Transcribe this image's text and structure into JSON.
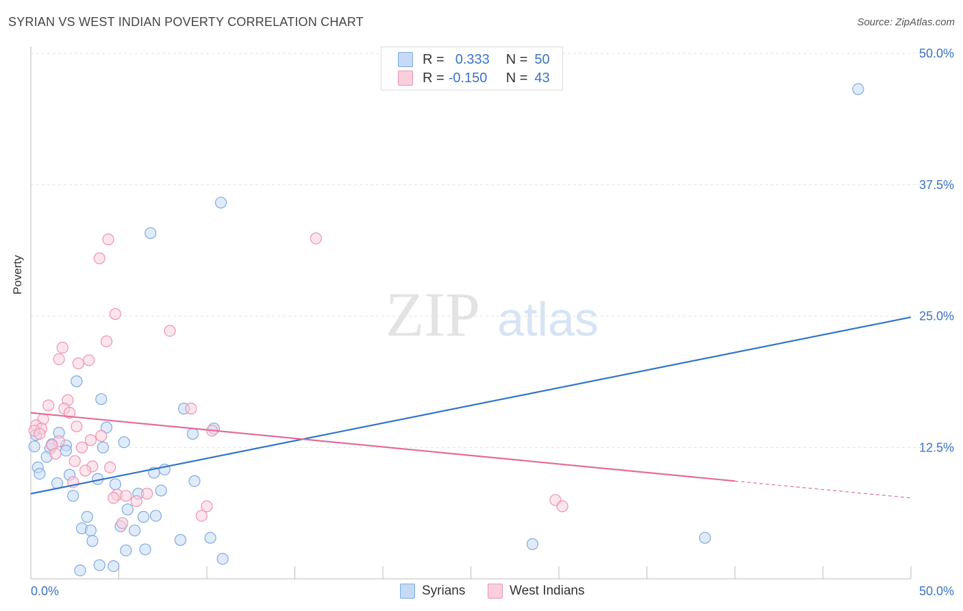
{
  "header": {
    "title": "SYRIAN VS WEST INDIAN POVERTY CORRELATION CHART",
    "source": "Source: ZipAtlas.com"
  },
  "legend": {
    "r_label": "R =",
    "n_label": "N =",
    "series": [
      {
        "r": "0.333",
        "n": "50"
      },
      {
        "r": "-0.150",
        "n": "43"
      }
    ]
  },
  "bottom_legend": [
    "Syrians",
    "West Indians"
  ],
  "watermark": {
    "zip": "ZIP",
    "atlas": "atlas"
  },
  "colors": {
    "syrians_fill": "#c6daf5",
    "syrians_stroke": "#7ea9e0",
    "syrians_line": "#2f74c9",
    "westindians_fill": "#f9cfdc",
    "westindians_stroke": "#ec93b0",
    "westindians_line": "#e36b98",
    "axis_text": "#3b73c4"
  },
  "chart_data": {
    "type": "scatter",
    "title": "SYRIAN VS WEST INDIAN POVERTY CORRELATION CHART",
    "xlabel": "",
    "ylabel": "Poverty",
    "xlim": [
      0,
      50
    ],
    "ylim": [
      0,
      50
    ],
    "x_tick_labels": [
      "0.0%",
      "50.0%"
    ],
    "y_tick_labels": [
      "12.5%",
      "25.0%",
      "37.5%",
      "50.0%"
    ],
    "y_ticks": [
      12.5,
      25,
      37.5,
      50
    ],
    "grid": true,
    "series": [
      {
        "name": "Syrians",
        "r": 0.333,
        "n": 50,
        "trend": {
          "x0": 0,
          "y0": 8.1,
          "x1": 50,
          "y1": 24.9
        },
        "points": [
          [
            47.0,
            46.6
          ],
          [
            10.8,
            35.8
          ],
          [
            6.8,
            32.9
          ],
          [
            2.6,
            18.8
          ],
          [
            4.0,
            17.1
          ],
          [
            8.7,
            16.2
          ],
          [
            9.2,
            13.8
          ],
          [
            10.4,
            14.3
          ],
          [
            4.3,
            14.4
          ],
          [
            5.3,
            13.0
          ],
          [
            1.6,
            13.9
          ],
          [
            2.0,
            12.7
          ],
          [
            2.0,
            12.2
          ],
          [
            1.1,
            12.4
          ],
          [
            0.9,
            11.6
          ],
          [
            0.4,
            10.6
          ],
          [
            0.5,
            10.0
          ],
          [
            0.2,
            12.6
          ],
          [
            2.2,
            9.9
          ],
          [
            1.5,
            9.1
          ],
          [
            3.8,
            9.5
          ],
          [
            4.8,
            9.0
          ],
          [
            7.0,
            10.1
          ],
          [
            7.6,
            10.4
          ],
          [
            9.3,
            9.3
          ],
          [
            2.4,
            7.9
          ],
          [
            6.1,
            8.1
          ],
          [
            7.4,
            8.4
          ],
          [
            5.5,
            6.6
          ],
          [
            3.2,
            5.9
          ],
          [
            6.4,
            5.9
          ],
          [
            7.1,
            6.0
          ],
          [
            2.9,
            4.8
          ],
          [
            3.4,
            4.6
          ],
          [
            5.1,
            5.0
          ],
          [
            5.9,
            4.6
          ],
          [
            3.5,
            3.6
          ],
          [
            8.5,
            3.7
          ],
          [
            10.2,
            3.9
          ],
          [
            28.5,
            3.3
          ],
          [
            38.3,
            3.9
          ],
          [
            5.4,
            2.7
          ],
          [
            6.5,
            2.8
          ],
          [
            10.9,
            1.9
          ],
          [
            3.9,
            1.3
          ],
          [
            4.7,
            1.2
          ],
          [
            2.8,
            0.8
          ],
          [
            0.3,
            13.7
          ],
          [
            4.1,
            12.5
          ],
          [
            1.2,
            12.8
          ]
        ]
      },
      {
        "name": "West Indians",
        "r": -0.15,
        "n": 43,
        "trend": {
          "x0": 0,
          "y0": 15.8,
          "x1": 40,
          "y1": 9.3,
          "dash_to_x": 50,
          "dash_to_y": 7.7
        },
        "points": [
          [
            16.2,
            32.4
          ],
          [
            4.4,
            32.3
          ],
          [
            3.9,
            30.5
          ],
          [
            4.8,
            25.2
          ],
          [
            7.9,
            23.6
          ],
          [
            4.3,
            22.6
          ],
          [
            1.8,
            22.0
          ],
          [
            1.6,
            20.9
          ],
          [
            3.3,
            20.8
          ],
          [
            2.7,
            20.5
          ],
          [
            1.0,
            16.5
          ],
          [
            2.1,
            17.0
          ],
          [
            1.9,
            16.2
          ],
          [
            2.2,
            15.8
          ],
          [
            9.1,
            16.2
          ],
          [
            0.7,
            15.2
          ],
          [
            0.3,
            14.6
          ],
          [
            0.6,
            14.3
          ],
          [
            0.2,
            14.1
          ],
          [
            0.5,
            13.8
          ],
          [
            2.6,
            14.5
          ],
          [
            4.0,
            13.6
          ],
          [
            3.4,
            13.2
          ],
          [
            1.6,
            13.1
          ],
          [
            1.2,
            12.7
          ],
          [
            2.9,
            12.5
          ],
          [
            10.3,
            14.1
          ],
          [
            1.4,
            11.9
          ],
          [
            2.5,
            11.2
          ],
          [
            3.5,
            10.7
          ],
          [
            4.5,
            10.6
          ],
          [
            3.1,
            10.3
          ],
          [
            2.4,
            9.2
          ],
          [
            4.9,
            8.0
          ],
          [
            4.7,
            7.7
          ],
          [
            5.4,
            7.9
          ],
          [
            6.6,
            8.1
          ],
          [
            6.0,
            7.4
          ],
          [
            10.0,
            6.9
          ],
          [
            9.7,
            6.0
          ],
          [
            29.8,
            7.5
          ],
          [
            30.2,
            6.9
          ],
          [
            5.2,
            5.3
          ]
        ]
      }
    ]
  }
}
